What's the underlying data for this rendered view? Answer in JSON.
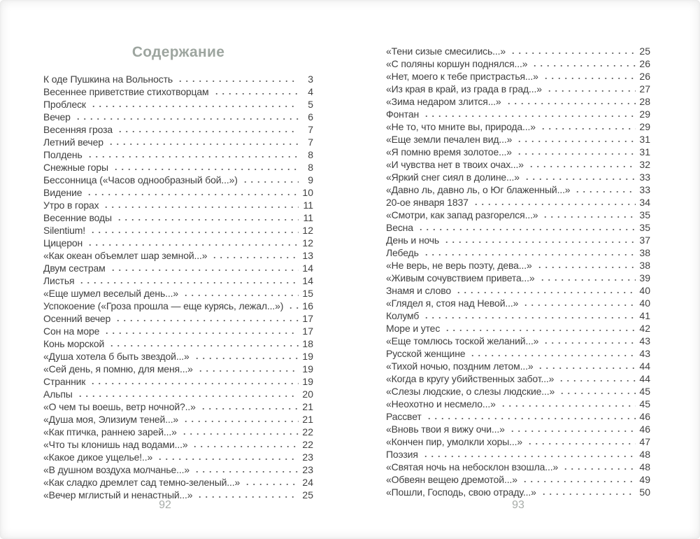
{
  "theme": {
    "background": "#ffffff",
    "text_color": "#3f3f3f",
    "title_color": "#9da59f",
    "page_number_color": "#a7aca8",
    "dot_color": "#666666"
  },
  "toc": {
    "title": "Содержание"
  },
  "left_page": {
    "page_number": "92",
    "entries": [
      {
        "title": "К оде Пушкина на Вольность",
        "page": "3"
      },
      {
        "title": "Весеннее приветствие стихотворцам",
        "page": "4"
      },
      {
        "title": "Проблеск",
        "page": "5"
      },
      {
        "title": "Вечер",
        "page": "6"
      },
      {
        "title": "Весенняя гроза",
        "page": "7"
      },
      {
        "title": "Летний вечер",
        "page": "7"
      },
      {
        "title": "Полдень",
        "page": "8"
      },
      {
        "title": "Снежные горы",
        "page": "8"
      },
      {
        "title": "Бессонница («Часов однообразный бой...»)",
        "page": "9"
      },
      {
        "title": "Видение",
        "page": "10"
      },
      {
        "title": "Утро в горах",
        "page": "11"
      },
      {
        "title": "Весенние воды",
        "page": "11"
      },
      {
        "title": "Silentium!",
        "page": "12"
      },
      {
        "title": "Цицерон",
        "page": "12"
      },
      {
        "title": "«Как океан объемлет шар земной...»",
        "page": "13"
      },
      {
        "title": "Двум сестрам",
        "page": "14"
      },
      {
        "title": "Листья",
        "page": "14"
      },
      {
        "title": "«Еще шумел веселый день...»",
        "page": "15"
      },
      {
        "title": "Успокоение («Гроза прошла — еще курясь, лежал...»)",
        "page": "16"
      },
      {
        "title": "Осенний вечер",
        "page": "17"
      },
      {
        "title": "Сон на море",
        "page": "17"
      },
      {
        "title": "Конь морской",
        "page": "18"
      },
      {
        "title": "«Душа хотела б быть звездой...»",
        "page": "19"
      },
      {
        "title": "«Сей день, я помню, для меня...»",
        "page": "19"
      },
      {
        "title": "Странник",
        "page": "19"
      },
      {
        "title": "Альпы",
        "page": "20"
      },
      {
        "title": "«О чем ты воешь, ветр ночной?..»",
        "page": "21"
      },
      {
        "title": "«Душа моя, Элизиум теней...»",
        "page": "21"
      },
      {
        "title": "«Как птичка, раннею зарей...»",
        "page": "22"
      },
      {
        "title": "«Что ты клонишь над водами...»",
        "page": "22"
      },
      {
        "title": "«Какое дикое ущелье!..»",
        "page": "23"
      },
      {
        "title": "«В душном воздуха молчанье...»",
        "page": "23"
      },
      {
        "title": "«Как сладко дремлет сад темно-зеленый...»",
        "page": "24"
      },
      {
        "title": "«Вечер мглистый и ненастный...»",
        "page": "25"
      }
    ]
  },
  "right_page": {
    "page_number": "93",
    "entries": [
      {
        "title": "«Тени сизые смесились...»",
        "page": "25"
      },
      {
        "title": "«С поляны коршун поднялся...»",
        "page": "26"
      },
      {
        "title": "«Нет, моего к тебе пристрастья...»",
        "page": "26"
      },
      {
        "title": "«Из края в край, из града в град...»",
        "page": "27"
      },
      {
        "title": "«Зима недаром злится...»",
        "page": "28"
      },
      {
        "title": "Фонтан",
        "page": "29"
      },
      {
        "title": "«Не то, что мните вы, природа...»",
        "page": "29"
      },
      {
        "title": "«Еще земли печален вид...»",
        "page": "31"
      },
      {
        "title": "«Я помню время золотое...»",
        "page": "31"
      },
      {
        "title": "«И чувства нет в твоих очах...»",
        "page": "32"
      },
      {
        "title": "«Яркий снег сиял в долине...»",
        "page": "33"
      },
      {
        "title": "«Давно ль, давно ль, о Юг блаженный...»",
        "page": "33"
      },
      {
        "title": "20-ое января 1837",
        "page": "34"
      },
      {
        "title": "«Смотри, как запад разгорелся...»",
        "page": "35"
      },
      {
        "title": "Весна",
        "page": "35"
      },
      {
        "title": "День и ночь",
        "page": "37"
      },
      {
        "title": "Лебедь",
        "page": "38"
      },
      {
        "title": "«Не верь, не верь поэту, дева...»",
        "page": "38"
      },
      {
        "title": "«Живым сочувствием привета...»",
        "page": "39"
      },
      {
        "title": "Знамя и слово",
        "page": "40"
      },
      {
        "title": "«Глядел я, стоя над Невой...»",
        "page": "40"
      },
      {
        "title": "Колумб",
        "page": "41"
      },
      {
        "title": "Море и утес",
        "page": "42"
      },
      {
        "title": "«Еще томлюсь тоской желаний...»",
        "page": "43"
      },
      {
        "title": "Русской женщине",
        "page": "43"
      },
      {
        "title": "«Тихой ночью, поздним летом...»",
        "page": "44"
      },
      {
        "title": "«Когда в кругу убийственных забот...»",
        "page": "44"
      },
      {
        "title": "«Слезы людские, о слезы людские...»",
        "page": "45"
      },
      {
        "title": "«Неохотно и несмело...»",
        "page": "45"
      },
      {
        "title": "Рассвет",
        "page": "46"
      },
      {
        "title": "«Вновь твои я вижу очи...»",
        "page": "46"
      },
      {
        "title": "«Кончен пир, умолкли хоры...»",
        "page": "47"
      },
      {
        "title": "Поэзия",
        "page": "48"
      },
      {
        "title": "«Святая ночь на небосклон взошла...»",
        "page": "48"
      },
      {
        "title": "«Обвеян вещею дремотой...»",
        "page": "49"
      },
      {
        "title": "«Пошли, Господь, свою отраду...»",
        "page": "50"
      }
    ]
  }
}
